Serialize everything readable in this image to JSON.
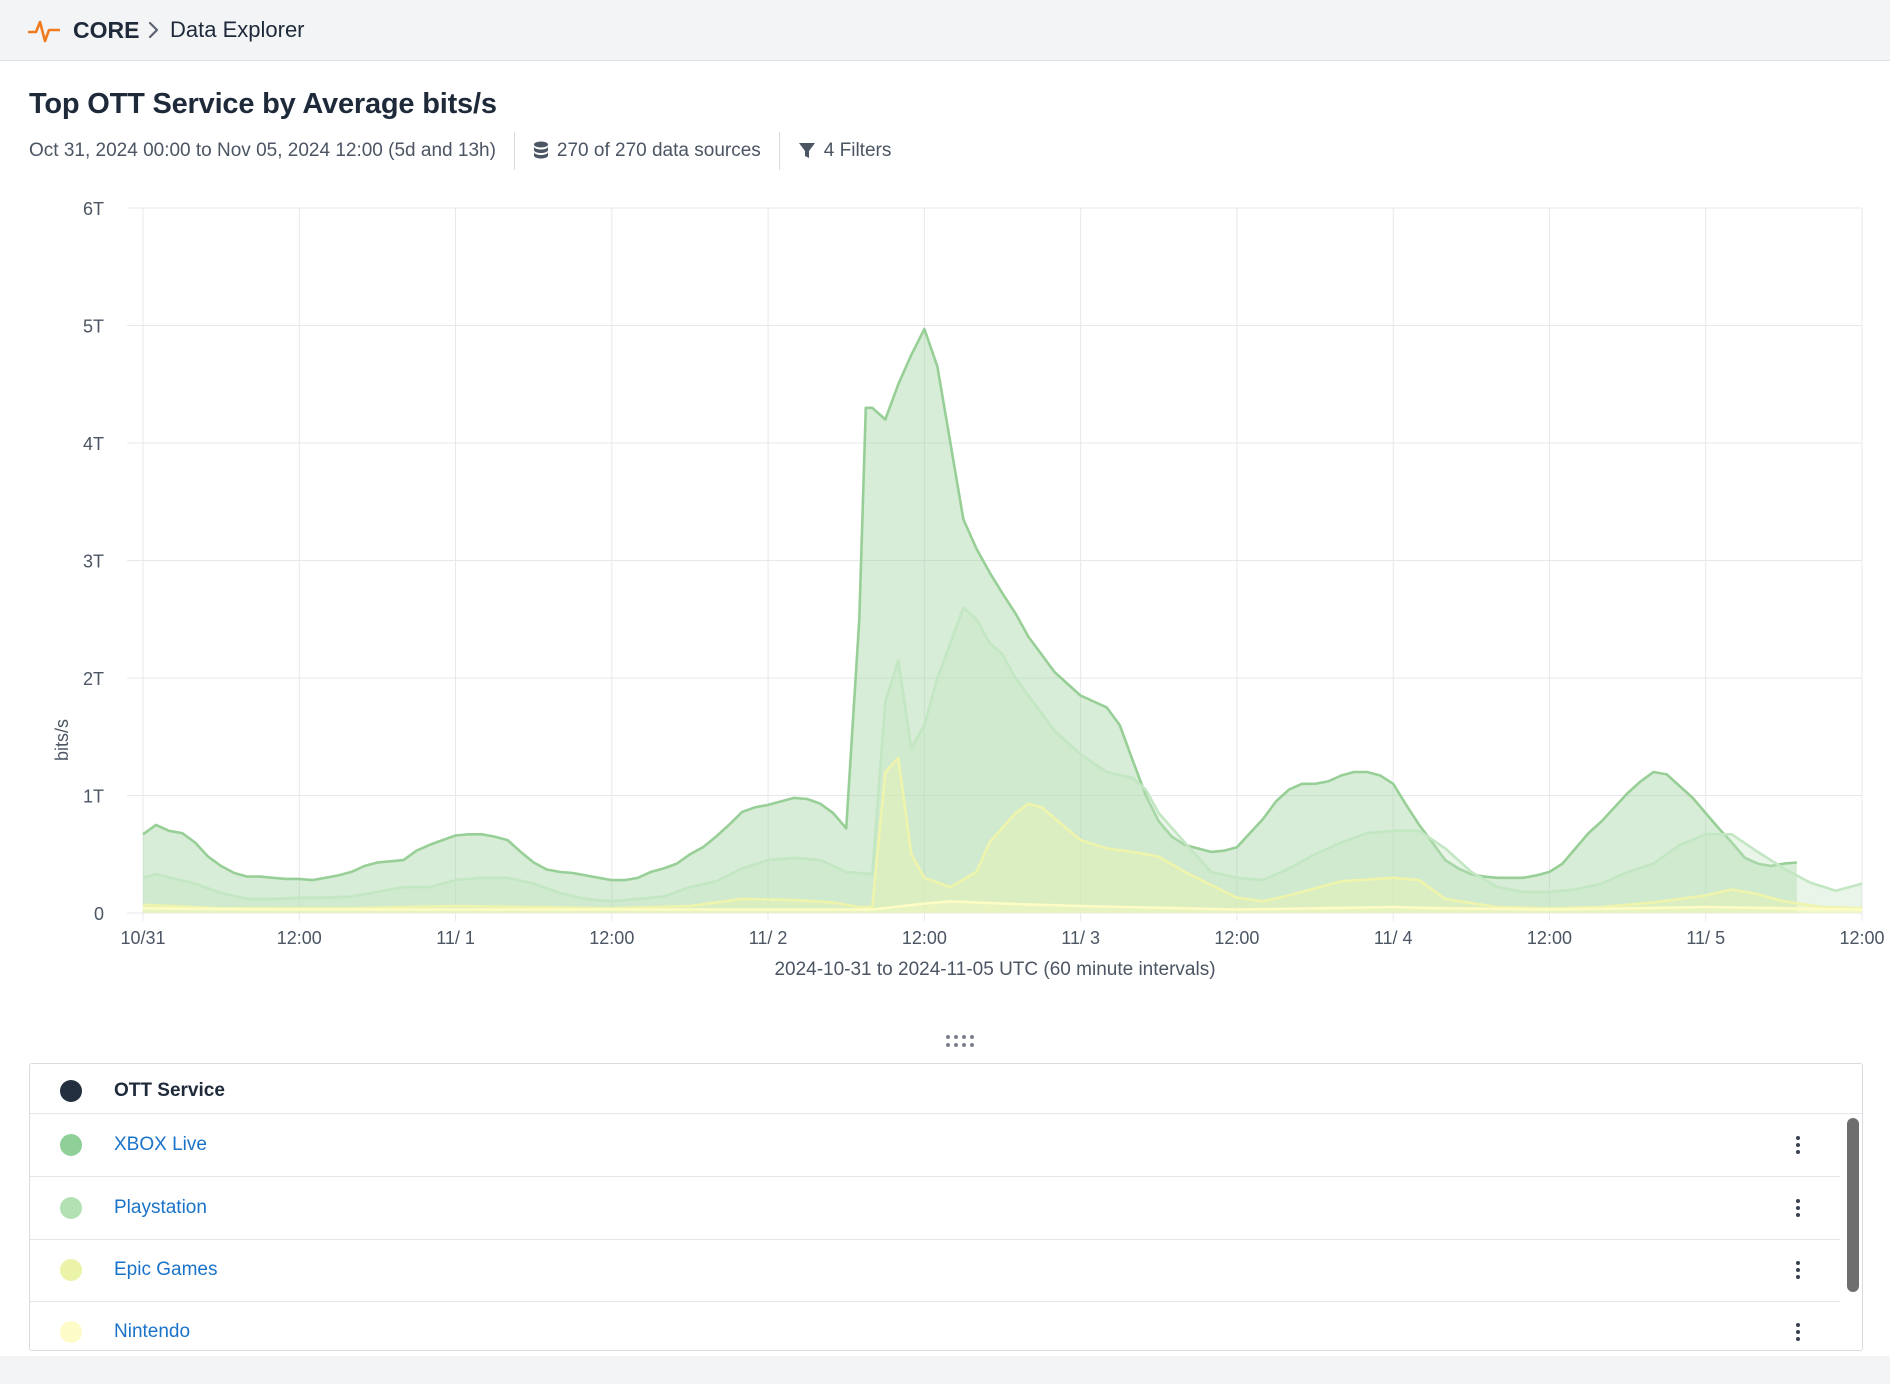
{
  "header": {
    "brand": "CORE",
    "breadcrumb": "Data Explorer",
    "accent_color": "#f07b1e"
  },
  "page": {
    "title": "Top OTT Service by Average bits/s",
    "time_range": "Oct 31, 2024 00:00 to Nov 05, 2024 12:00 (5d and 13h)",
    "data_sources": "270 of 270 data sources",
    "filters": "4 Filters"
  },
  "chart_data": {
    "type": "area",
    "stacked": true,
    "ylabel": "bits/s",
    "xlabel": "2024-10-31 to 2024-11-05 UTC (60 minute intervals)",
    "ylim": [
      0,
      6
    ],
    "yunit": "T",
    "y_ticks": [
      "0",
      "1T",
      "2T",
      "3T",
      "4T",
      "5T",
      "6T"
    ],
    "x_range_hours": [
      0,
      132
    ],
    "x_ticks": [
      {
        "label": "10/31",
        "hour": 0
      },
      {
        "label": "12:00",
        "hour": 12
      },
      {
        "label": "11/ 1",
        "hour": 24
      },
      {
        "label": "12:00",
        "hour": 36
      },
      {
        "label": "11/ 2",
        "hour": 48
      },
      {
        "label": "12:00",
        "hour": 60
      },
      {
        "label": "11/ 3",
        "hour": 72
      },
      {
        "label": "12:00",
        "hour": 84
      },
      {
        "label": "11/ 4",
        "hour": 96
      },
      {
        "label": "12:00",
        "hour": 108
      },
      {
        "label": "11/ 5",
        "hour": 120
      },
      {
        "label": "12:00",
        "hour": 132
      }
    ],
    "series_totals": [
      {
        "name": "Nintendo",
        "color": "#fdfcc4",
        "points": [
          [
            0,
            0.04
          ],
          [
            10,
            0.03
          ],
          [
            24,
            0.03
          ],
          [
            36,
            0.03
          ],
          [
            48,
            0.03
          ],
          [
            54,
            0.03
          ],
          [
            56,
            0.03
          ],
          [
            60,
            0.08
          ],
          [
            62,
            0.1
          ],
          [
            66,
            0.08
          ],
          [
            72,
            0.06
          ],
          [
            80,
            0.04
          ],
          [
            84,
            0.03
          ],
          [
            90,
            0.04
          ],
          [
            96,
            0.05
          ],
          [
            100,
            0.04
          ],
          [
            108,
            0.03
          ],
          [
            114,
            0.04
          ],
          [
            120,
            0.05
          ],
          [
            126,
            0.04
          ],
          [
            132,
            0.03
          ]
        ]
      },
      {
        "name": "Epic Games",
        "color": "#eef4ac",
        "points": [
          [
            0,
            0.07
          ],
          [
            6,
            0.04
          ],
          [
            10,
            0.04
          ],
          [
            16,
            0.04
          ],
          [
            20,
            0.05
          ],
          [
            24,
            0.06
          ],
          [
            30,
            0.05
          ],
          [
            36,
            0.04
          ],
          [
            42,
            0.06
          ],
          [
            46,
            0.12
          ],
          [
            50,
            0.11
          ],
          [
            53,
            0.09
          ],
          [
            55,
            0.05
          ],
          [
            56,
            0.05
          ],
          [
            57,
            1.2
          ],
          [
            58,
            1.32
          ],
          [
            59,
            0.5
          ],
          [
            60,
            0.3
          ],
          [
            62,
            0.22
          ],
          [
            64,
            0.35
          ],
          [
            65,
            0.6
          ],
          [
            67,
            0.85
          ],
          [
            68,
            0.93
          ],
          [
            69,
            0.9
          ],
          [
            72,
            0.62
          ],
          [
            74,
            0.55
          ],
          [
            76,
            0.52
          ],
          [
            78,
            0.48
          ],
          [
            80,
            0.35
          ],
          [
            84,
            0.13
          ],
          [
            86,
            0.1
          ],
          [
            88,
            0.15
          ],
          [
            92,
            0.27
          ],
          [
            96,
            0.3
          ],
          [
            98,
            0.28
          ],
          [
            100,
            0.12
          ],
          [
            104,
            0.05
          ],
          [
            108,
            0.04
          ],
          [
            112,
            0.05
          ],
          [
            116,
            0.09
          ],
          [
            120,
            0.15
          ],
          [
            122,
            0.2
          ],
          [
            124,
            0.16
          ],
          [
            126,
            0.1
          ],
          [
            129,
            0.05
          ],
          [
            132,
            0.04
          ]
        ]
      },
      {
        "name": "Playstation",
        "color": "#c3e6c3",
        "points": [
          [
            0,
            0.3
          ],
          [
            1,
            0.33
          ],
          [
            4,
            0.25
          ],
          [
            6,
            0.17
          ],
          [
            8,
            0.12
          ],
          [
            10,
            0.12
          ],
          [
            12,
            0.13
          ],
          [
            14,
            0.13
          ],
          [
            16,
            0.14
          ],
          [
            18,
            0.18
          ],
          [
            20,
            0.22
          ],
          [
            22,
            0.22
          ],
          [
            24,
            0.28
          ],
          [
            26,
            0.3
          ],
          [
            28,
            0.3
          ],
          [
            30,
            0.25
          ],
          [
            32,
            0.17
          ],
          [
            34,
            0.12
          ],
          [
            36,
            0.1
          ],
          [
            40,
            0.14
          ],
          [
            42,
            0.22
          ],
          [
            44,
            0.27
          ],
          [
            46,
            0.38
          ],
          [
            48,
            0.45
          ],
          [
            50,
            0.47
          ],
          [
            52,
            0.45
          ],
          [
            54,
            0.35
          ],
          [
            56,
            0.33
          ],
          [
            57,
            1.8
          ],
          [
            58,
            2.15
          ],
          [
            59,
            1.4
          ],
          [
            60,
            1.6
          ],
          [
            61,
            2.0
          ],
          [
            62,
            2.3
          ],
          [
            63,
            2.6
          ],
          [
            64,
            2.5
          ],
          [
            65,
            2.3
          ],
          [
            66,
            2.2
          ],
          [
            67,
            2.0
          ],
          [
            68,
            1.85
          ],
          [
            70,
            1.55
          ],
          [
            72,
            1.35
          ],
          [
            74,
            1.2
          ],
          [
            76,
            1.15
          ],
          [
            77,
            1.05
          ],
          [
            78,
            0.85
          ],
          [
            80,
            0.6
          ],
          [
            82,
            0.35
          ],
          [
            84,
            0.3
          ],
          [
            86,
            0.28
          ],
          [
            88,
            0.38
          ],
          [
            90,
            0.5
          ],
          [
            92,
            0.6
          ],
          [
            94,
            0.68
          ],
          [
            96,
            0.7
          ],
          [
            98,
            0.7
          ],
          [
            100,
            0.55
          ],
          [
            102,
            0.35
          ],
          [
            104,
            0.22
          ],
          [
            106,
            0.18
          ],
          [
            108,
            0.18
          ],
          [
            110,
            0.2
          ],
          [
            112,
            0.25
          ],
          [
            114,
            0.35
          ],
          [
            116,
            0.42
          ],
          [
            118,
            0.58
          ],
          [
            120,
            0.67
          ],
          [
            122,
            0.67
          ],
          [
            124,
            0.52
          ],
          [
            126,
            0.38
          ],
          [
            128,
            0.26
          ],
          [
            130,
            0.19
          ],
          [
            132,
            0.25
          ]
        ]
      },
      {
        "name": "XBOX Live",
        "color": "#97cf97",
        "points": [
          [
            0,
            0.67
          ],
          [
            1,
            0.75
          ],
          [
            2,
            0.7
          ],
          [
            3,
            0.68
          ],
          [
            4,
            0.6
          ],
          [
            5,
            0.48
          ],
          [
            6,
            0.4
          ],
          [
            7,
            0.34
          ],
          [
            8,
            0.31
          ],
          [
            9,
            0.31
          ],
          [
            10,
            0.3
          ],
          [
            11,
            0.29
          ],
          [
            12,
            0.29
          ],
          [
            13,
            0.28
          ],
          [
            14,
            0.3
          ],
          [
            15,
            0.32
          ],
          [
            16,
            0.35
          ],
          [
            17,
            0.4
          ],
          [
            18,
            0.43
          ],
          [
            19,
            0.44
          ],
          [
            20,
            0.45
          ],
          [
            21,
            0.53
          ],
          [
            22,
            0.58
          ],
          [
            23,
            0.62
          ],
          [
            24,
            0.66
          ],
          [
            25,
            0.67
          ],
          [
            26,
            0.67
          ],
          [
            27,
            0.65
          ],
          [
            28,
            0.62
          ],
          [
            29,
            0.52
          ],
          [
            30,
            0.43
          ],
          [
            31,
            0.37
          ],
          [
            32,
            0.35
          ],
          [
            33,
            0.34
          ],
          [
            34,
            0.32
          ],
          [
            35,
            0.3
          ],
          [
            36,
            0.28
          ],
          [
            37,
            0.28
          ],
          [
            38,
            0.3
          ],
          [
            39,
            0.35
          ],
          [
            40,
            0.38
          ],
          [
            41,
            0.42
          ],
          [
            42,
            0.5
          ],
          [
            43,
            0.56
          ],
          [
            44,
            0.65
          ],
          [
            45,
            0.75
          ],
          [
            46,
            0.86
          ],
          [
            47,
            0.9
          ],
          [
            48,
            0.92
          ],
          [
            49,
            0.95
          ],
          [
            50,
            0.98
          ],
          [
            51,
            0.97
          ],
          [
            52,
            0.93
          ],
          [
            53,
            0.85
          ],
          [
            54,
            0.72
          ],
          [
            55,
            2.5
          ],
          [
            55.5,
            4.3
          ],
          [
            56,
            4.3
          ],
          [
            57,
            4.2
          ],
          [
            58,
            4.5
          ],
          [
            59,
            4.75
          ],
          [
            60,
            4.97
          ],
          [
            61,
            4.65
          ],
          [
            62,
            4.0
          ],
          [
            63,
            3.35
          ],
          [
            64,
            3.1
          ],
          [
            65,
            2.9
          ],
          [
            66,
            2.72
          ],
          [
            67,
            2.55
          ],
          [
            68,
            2.35
          ],
          [
            69,
            2.2
          ],
          [
            70,
            2.05
          ],
          [
            71,
            1.95
          ],
          [
            72,
            1.85
          ],
          [
            73,
            1.8
          ],
          [
            74,
            1.75
          ],
          [
            75,
            1.6
          ],
          [
            76,
            1.3
          ],
          [
            77,
            1.0
          ],
          [
            78,
            0.78
          ],
          [
            79,
            0.65
          ],
          [
            80,
            0.58
          ],
          [
            81,
            0.55
          ],
          [
            82,
            0.52
          ],
          [
            83,
            0.53
          ],
          [
            84,
            0.56
          ],
          [
            85,
            0.68
          ],
          [
            86,
            0.8
          ],
          [
            87,
            0.95
          ],
          [
            88,
            1.05
          ],
          [
            89,
            1.1
          ],
          [
            90,
            1.1
          ],
          [
            91,
            1.12
          ],
          [
            92,
            1.17
          ],
          [
            93,
            1.2
          ],
          [
            94,
            1.2
          ],
          [
            95,
            1.17
          ],
          [
            96,
            1.1
          ],
          [
            97,
            0.92
          ],
          [
            98,
            0.75
          ],
          [
            99,
            0.6
          ],
          [
            100,
            0.45
          ],
          [
            101,
            0.38
          ],
          [
            102,
            0.33
          ],
          [
            103,
            0.31
          ],
          [
            104,
            0.3
          ],
          [
            105,
            0.3
          ],
          [
            106,
            0.3
          ],
          [
            107,
            0.32
          ],
          [
            108,
            0.35
          ],
          [
            109,
            0.42
          ],
          [
            110,
            0.55
          ],
          [
            111,
            0.68
          ],
          [
            112,
            0.78
          ],
          [
            113,
            0.9
          ],
          [
            114,
            1.02
          ],
          [
            115,
            1.12
          ],
          [
            116,
            1.2
          ],
          [
            117,
            1.18
          ],
          [
            118,
            1.08
          ],
          [
            119,
            0.98
          ],
          [
            120,
            0.85
          ],
          [
            121,
            0.72
          ],
          [
            122,
            0.6
          ],
          [
            123,
            0.47
          ],
          [
            124,
            0.42
          ],
          [
            125,
            0.4
          ],
          [
            126,
            0.42
          ],
          [
            127,
            0.43
          ]
        ]
      }
    ]
  },
  "table": {
    "header": "OTT Service",
    "header_color": "#232f3e",
    "rows": [
      {
        "name": "XBOX Live",
        "color": "#8fcf98"
      },
      {
        "name": "Playstation",
        "color": "#b4e1b4"
      },
      {
        "name": "Epic Games",
        "color": "#eaf3a7"
      },
      {
        "name": "Nintendo",
        "color": "#fdfcc9"
      }
    ]
  }
}
